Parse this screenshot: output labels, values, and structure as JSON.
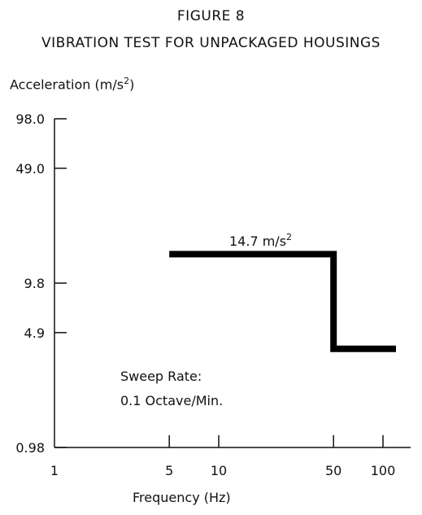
{
  "title": "FIGURE 8",
  "subtitle": "VIBRATION TEST FOR UNPACKAGED HOUSINGS",
  "ylabel": {
    "text": "Acceleration (m/s",
    "exp": "2",
    "close": ")"
  },
  "xlabel": "Frequency (Hz)",
  "colors": {
    "line": "#000000",
    "axis": "#111111"
  },
  "chart_data": {
    "type": "line",
    "x_scale": "log",
    "y_scale": "log",
    "xlim": [
      1,
      120
    ],
    "ylim": [
      0.98,
      98.0
    ],
    "x_ticks": [
      1,
      5,
      10,
      50,
      100
    ],
    "x_tick_labels": [
      "1",
      "5",
      "10",
      "50",
      "100"
    ],
    "y_ticks": [
      98.0,
      49.0,
      9.8,
      4.9,
      0.98
    ],
    "y_tick_labels": [
      "98.0",
      "49.0",
      "9.8",
      "4.9",
      "0.98"
    ],
    "grid": false,
    "series": [
      {
        "x": [
          5,
          50,
          50,
          120
        ],
        "y": [
          14.7,
          14.7,
          3.9,
          3.9
        ]
      }
    ],
    "annotations": [
      {
        "text": "14.7 m/s",
        "sup": "2"
      },
      {
        "text": "Sweep Rate:"
      },
      {
        "text": "0.1 Octave/Min."
      }
    ]
  }
}
